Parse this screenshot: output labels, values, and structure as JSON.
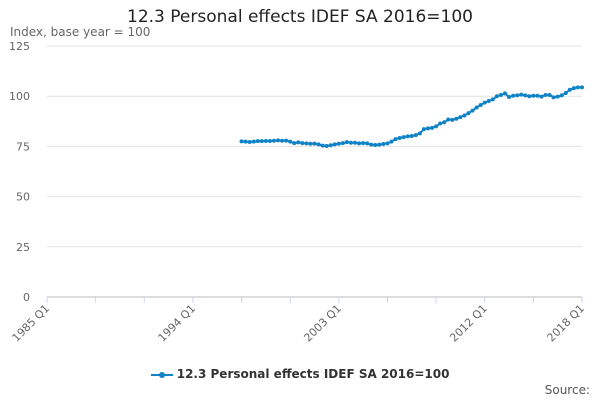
{
  "chart_data": {
    "type": "line",
    "title": "12.3 Personal effects IDEF SA 2016=100",
    "ylabel": "Index, base year = 100",
    "xlabel": "",
    "source_label": "Source:",
    "ylim": [
      0,
      125
    ],
    "yticks": [
      0,
      25,
      50,
      75,
      100,
      125
    ],
    "x_range": [
      "1985 Q1",
      "2018 Q1"
    ],
    "xtick_labels": [
      "1985 Q1",
      "1994 Q1",
      "2003 Q1",
      "2012 Q1",
      "2018 Q1"
    ],
    "grid": true,
    "legend_position": "bottom",
    "color": "#0f83c6",
    "series": [
      {
        "name": "12.3 Personal effects IDEF SA 2016=100",
        "start": "1997 Q1",
        "values": [
          77.5,
          77.4,
          77.2,
          77.4,
          77.6,
          77.6,
          77.7,
          77.7,
          77.8,
          78.0,
          77.8,
          77.9,
          77.4,
          76.6,
          77.0,
          76.6,
          76.5,
          76.3,
          76.4,
          76.0,
          75.4,
          75.2,
          75.6,
          76.0,
          76.3,
          76.6,
          77.1,
          76.8,
          76.8,
          76.5,
          76.6,
          76.5,
          75.9,
          75.7,
          75.9,
          76.2,
          76.5,
          77.4,
          78.6,
          79.2,
          79.6,
          80.0,
          80.2,
          80.6,
          81.5,
          83.6,
          84.0,
          84.2,
          85.0,
          86.4,
          87.0,
          88.4,
          88.2,
          88.8,
          89.6,
          90.4,
          91.6,
          92.8,
          94.4,
          95.6,
          96.8,
          97.6,
          98.4,
          100.0,
          100.6,
          101.4,
          99.6,
          100.2,
          100.4,
          100.8,
          100.4,
          100.0,
          100.2,
          100.2,
          99.8,
          100.6,
          100.6,
          99.4,
          99.8,
          100.4,
          101.6,
          103.2,
          104.0,
          104.4,
          104.4
        ]
      }
    ]
  }
}
